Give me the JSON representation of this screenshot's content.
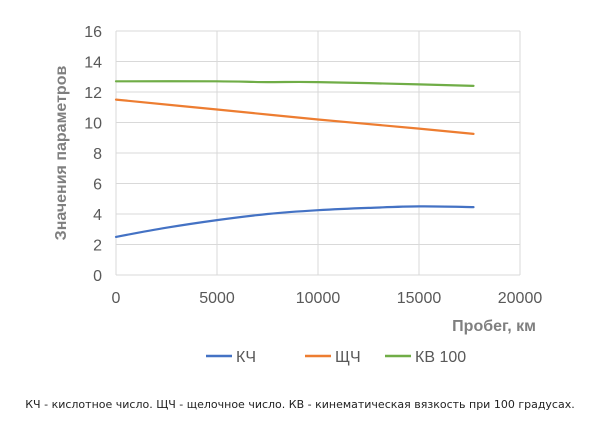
{
  "chart_data": {
    "type": "line",
    "xlabel": "Пробег, км",
    "ylabel": "Значения параметров",
    "xlim": [
      0,
      20000
    ],
    "ylim": [
      0,
      16
    ],
    "xticks": [
      0,
      5000,
      10000,
      15000,
      20000
    ],
    "yticks": [
      0,
      2,
      4,
      6,
      8,
      10,
      12,
      14,
      16
    ],
    "grid": true,
    "legend_position": "bottom",
    "series": [
      {
        "name": "КЧ",
        "color": "#4472c4",
        "x": [
          0,
          2500,
          5000,
          7500,
          10000,
          12500,
          15000,
          17700
        ],
        "y": [
          2.5,
          3.1,
          3.6,
          4.0,
          4.25,
          4.4,
          4.5,
          4.45
        ]
      },
      {
        "name": "ЩЧ",
        "color": "#ed7d31",
        "x": [
          0,
          5000,
          10000,
          15000,
          17700
        ],
        "y": [
          11.5,
          10.85,
          10.2,
          9.6,
          9.25
        ]
      },
      {
        "name": "КВ 100",
        "color": "#70ad47",
        "x": [
          0,
          5000,
          7500,
          10000,
          15000,
          17700
        ],
        "y": [
          12.7,
          12.7,
          12.65,
          12.65,
          12.5,
          12.4
        ]
      }
    ]
  },
  "caption": "КЧ - кислотное число.  ЩЧ - щелочное число.  КВ - кинематическая вязкость при 100 градусах."
}
